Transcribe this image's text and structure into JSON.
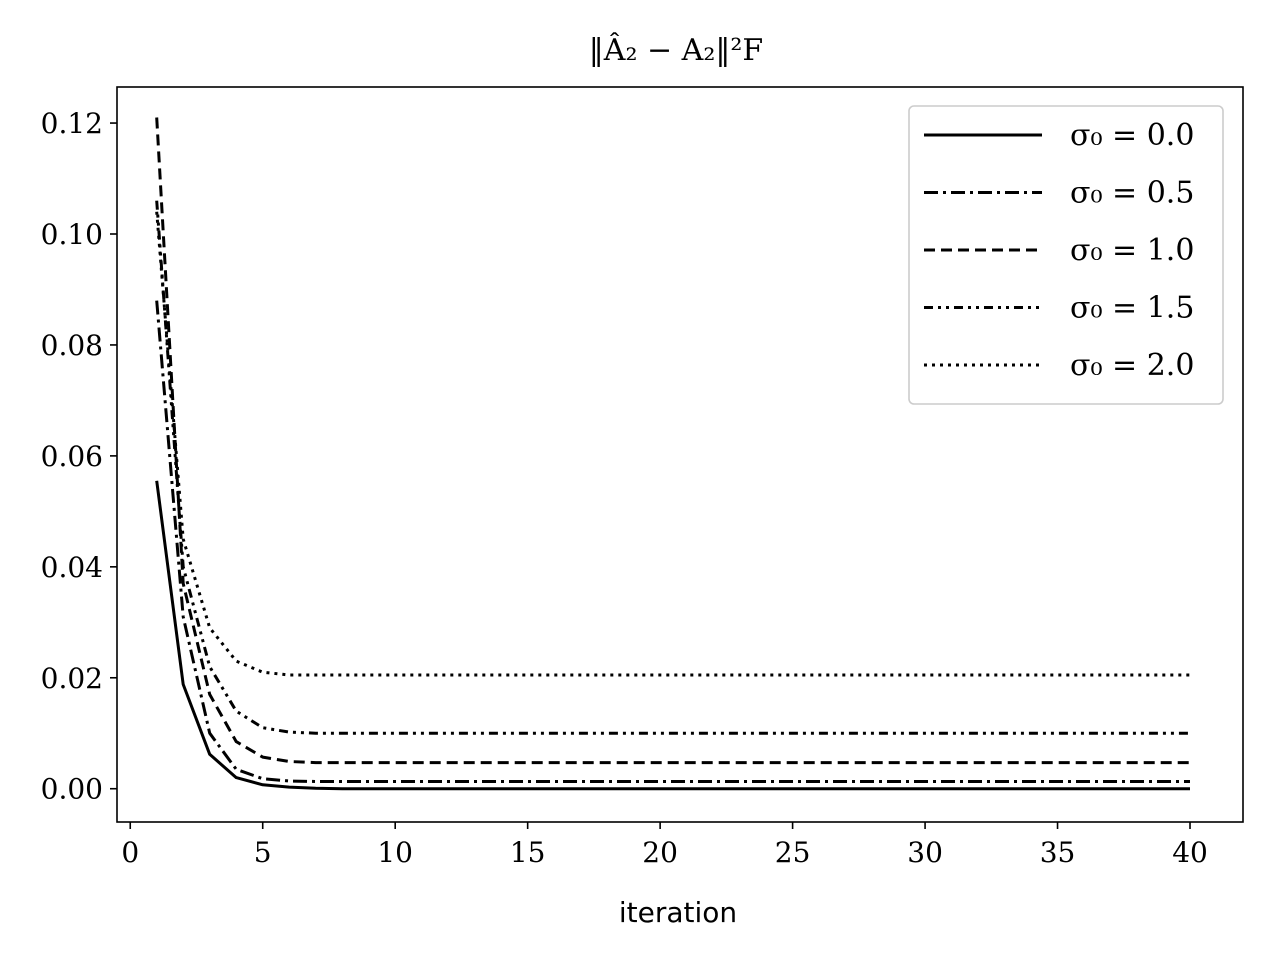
{
  "chart_data": {
    "type": "line",
    "title": "‖Â₂ − A₂‖²F",
    "xlabel": "iteration",
    "ylabel": "",
    "xlim": [
      -0.5,
      42
    ],
    "ylim": [
      -0.006,
      0.1265
    ],
    "xticks": [
      0,
      5,
      10,
      15,
      20,
      25,
      30,
      35,
      40
    ],
    "xtick_labels": [
      "0",
      "5",
      "10",
      "15",
      "20",
      "25",
      "30",
      "35",
      "40"
    ],
    "yticks": [
      0.0,
      0.02,
      0.04,
      0.06,
      0.08,
      0.1,
      0.12
    ],
    "ytick_labels": [
      "0.00",
      "0.02",
      "0.04",
      "0.06",
      "0.08",
      "0.10",
      "0.12"
    ],
    "grid": false,
    "legend_position": "top-right",
    "x": [
      1,
      2,
      3,
      4,
      5,
      6,
      7,
      8,
      9,
      10,
      11,
      12,
      13,
      14,
      15,
      16,
      17,
      18,
      19,
      20,
      21,
      22,
      23,
      24,
      25,
      26,
      27,
      28,
      29,
      30,
      31,
      32,
      33,
      34,
      35,
      36,
      37,
      38,
      39,
      40
    ],
    "series": [
      {
        "name": "σ₀ = 0.0",
        "style": "solid",
        "values": [
          0.0555,
          0.0188,
          0.0062,
          0.002,
          0.0007,
          0.0003,
          0.0001,
          0.0,
          0.0,
          0.0,
          0.0,
          0.0,
          0.0,
          0.0,
          0.0,
          0.0,
          0.0,
          0.0,
          0.0,
          0.0,
          0.0,
          0.0,
          0.0,
          0.0,
          0.0,
          0.0,
          0.0,
          0.0,
          0.0,
          0.0,
          0.0,
          0.0,
          0.0,
          0.0,
          0.0,
          0.0,
          0.0,
          0.0,
          0.0,
          0.0
        ]
      },
      {
        "name": "σ₀ = 0.5",
        "style": "dashdot",
        "values": [
          0.088,
          0.031,
          0.01,
          0.0035,
          0.0018,
          0.0014,
          0.0013,
          0.0013,
          0.0013,
          0.0013,
          0.0013,
          0.0013,
          0.0013,
          0.0013,
          0.0013,
          0.0013,
          0.0013,
          0.0013,
          0.0013,
          0.0013,
          0.0013,
          0.0013,
          0.0013,
          0.0013,
          0.0013,
          0.0013,
          0.0013,
          0.0013,
          0.0013,
          0.0013,
          0.0013,
          0.0013,
          0.0013,
          0.0013,
          0.0013,
          0.0013,
          0.0013,
          0.0013,
          0.0013,
          0.0013
        ]
      },
      {
        "name": "σ₀ = 1.0",
        "style": "dashed",
        "values": [
          0.121,
          0.037,
          0.017,
          0.0085,
          0.0057,
          0.0049,
          0.0047,
          0.0047,
          0.0047,
          0.0047,
          0.0047,
          0.0047,
          0.0047,
          0.0047,
          0.0047,
          0.0047,
          0.0047,
          0.0047,
          0.0047,
          0.0047,
          0.0047,
          0.0047,
          0.0047,
          0.0047,
          0.0047,
          0.0047,
          0.0047,
          0.0047,
          0.0047,
          0.0047,
          0.0047,
          0.0047,
          0.0047,
          0.0047,
          0.0047,
          0.0047,
          0.0047,
          0.0047,
          0.0047,
          0.0047
        ]
      },
      {
        "name": "σ₀ = 1.5",
        "style": "dashdotdot",
        "values": [
          0.106,
          0.04,
          0.022,
          0.014,
          0.011,
          0.0102,
          0.01,
          0.01,
          0.01,
          0.01,
          0.01,
          0.01,
          0.01,
          0.01,
          0.01,
          0.01,
          0.01,
          0.01,
          0.01,
          0.01,
          0.01,
          0.01,
          0.01,
          0.01,
          0.01,
          0.01,
          0.01,
          0.01,
          0.01,
          0.01,
          0.01,
          0.01,
          0.01,
          0.01,
          0.01,
          0.01,
          0.01,
          0.01,
          0.01,
          0.01
        ]
      },
      {
        "name": "σ₀ = 2.0",
        "style": "dotted",
        "values": [
          0.104,
          0.045,
          0.029,
          0.023,
          0.021,
          0.0205,
          0.0205,
          0.0205,
          0.0205,
          0.0205,
          0.0205,
          0.0205,
          0.0205,
          0.0205,
          0.0205,
          0.0205,
          0.0205,
          0.0205,
          0.0205,
          0.0205,
          0.0205,
          0.0205,
          0.0205,
          0.0205,
          0.0205,
          0.0205,
          0.0205,
          0.0205,
          0.0205,
          0.0205,
          0.0205,
          0.0205,
          0.0205,
          0.0205,
          0.0205,
          0.0205,
          0.0205,
          0.0205,
          0.0205,
          0.0205
        ]
      }
    ],
    "colors": {
      "line": "#000000",
      "legend_border": "#cccccc",
      "background": "#ffffff"
    }
  }
}
